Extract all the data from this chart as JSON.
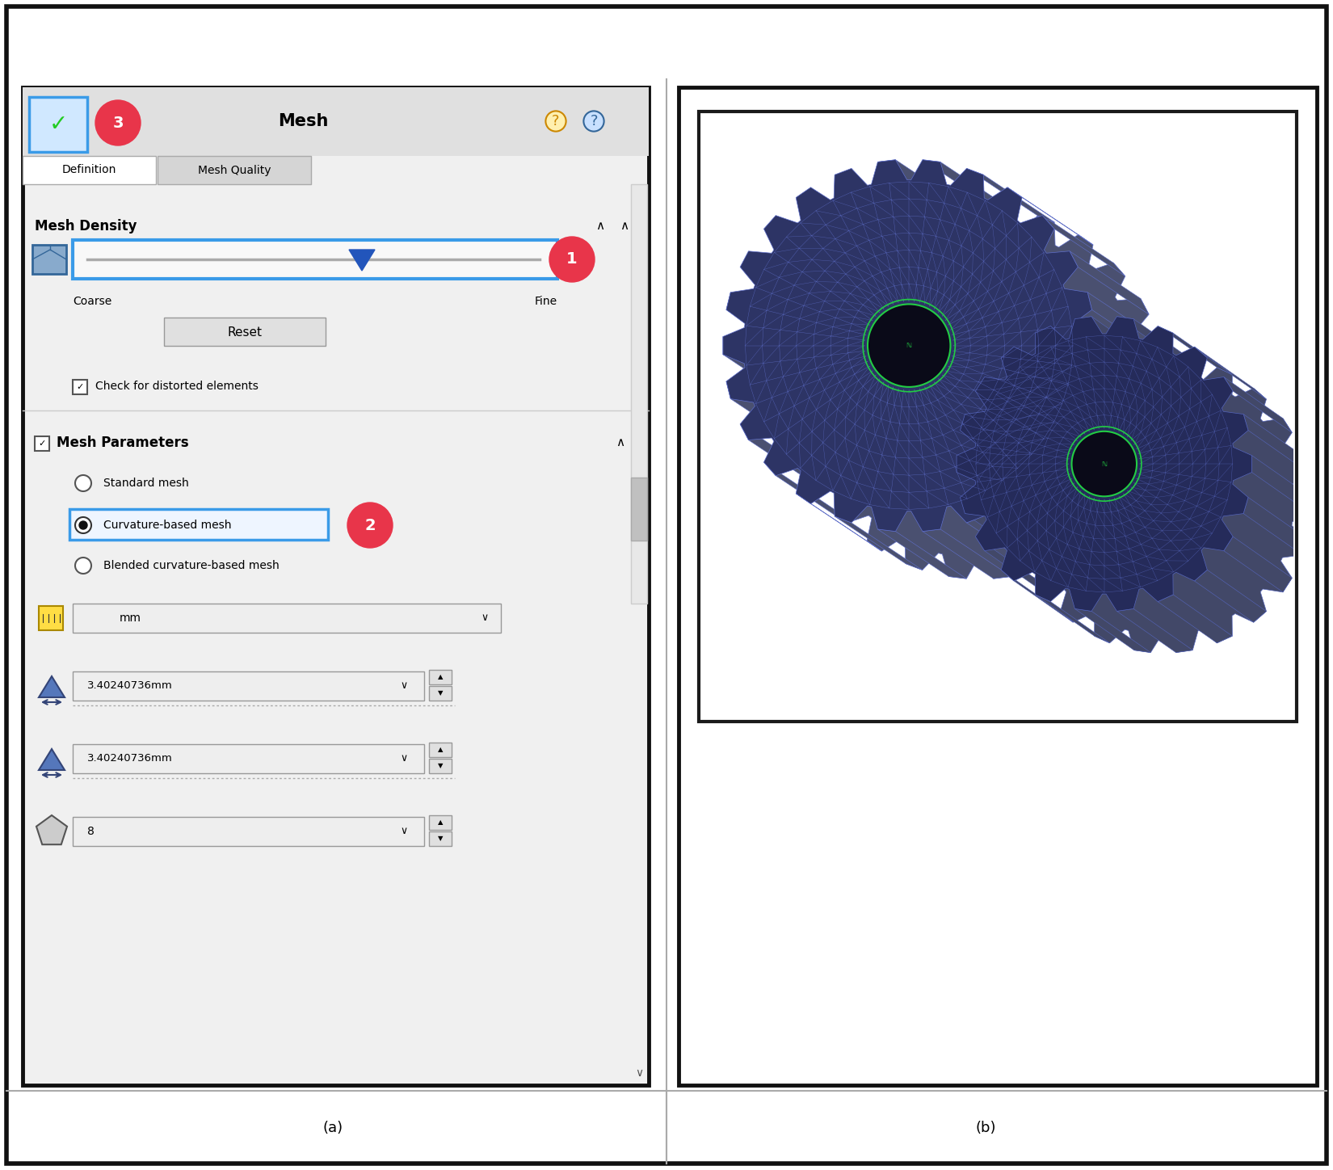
{
  "fig_width": 16.5,
  "fig_height": 14.48,
  "dpi": 100,
  "bg_color": "#ffffff",
  "outer_border_color": "#111111",
  "outer_border_lw": 4,
  "caption_a": "(a)",
  "caption_b": "(b)",
  "caption_fontsize": 13,
  "mesh_title": "Mesh",
  "mesh_title_fontsize": 13,
  "blue_highlight": "#3a9be8",
  "red_circle_color": "#e8354a",
  "green_check_color": "#22cc22",
  "slider_blue": "#2255bb",
  "panel_a_bg": "#f5f5f5",
  "panel_b_bg": "#ffffff",
  "gear_dark": "#2a2e5a",
  "gear_mid": "#383e72",
  "gear_face": "#3a4070",
  "gear_side": "#555a7a",
  "gear_mesh_line": "#5060bb",
  "gear_green": "#22aa44",
  "gear_bg": "#f5f5f5"
}
